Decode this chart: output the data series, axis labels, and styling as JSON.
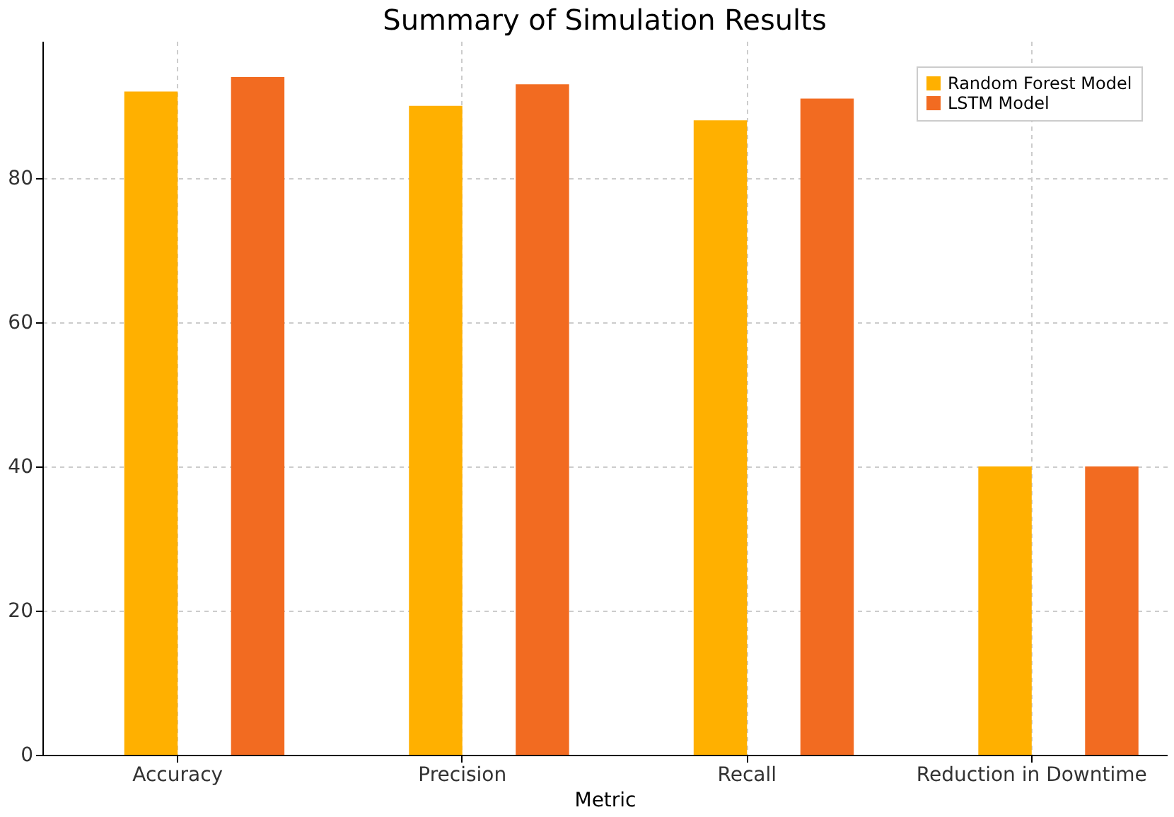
{
  "chart_data": {
    "type": "bar",
    "title": "Summary of Simulation Results",
    "xlabel": "Metric",
    "categories": [
      "Accuracy",
      "Precision",
      "Recall",
      "Reduction in Downtime"
    ],
    "series": [
      {
        "name": "Random Forest Model",
        "color": "#ffb000",
        "values": [
          92,
          90,
          88,
          40
        ]
      },
      {
        "name": "LSTM Model",
        "color": "#f26b21",
        "values": [
          94,
          93,
          91,
          40
        ]
      }
    ],
    "ylim": [
      0,
      99
    ],
    "yticks": [
      0,
      20,
      40,
      60,
      80
    ],
    "grid": true,
    "legend": "top right"
  }
}
